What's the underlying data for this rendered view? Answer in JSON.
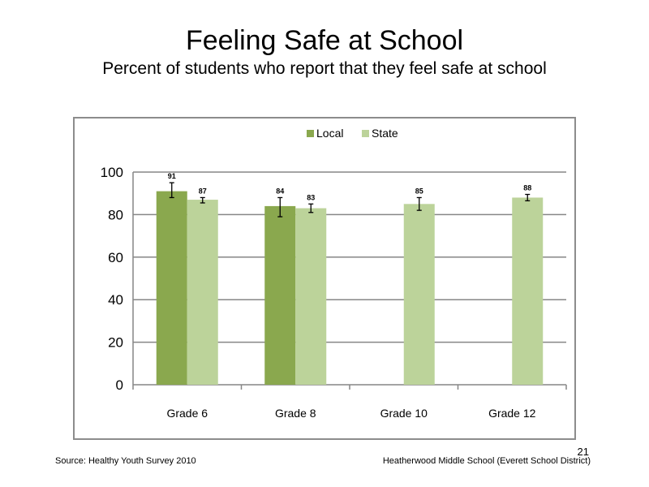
{
  "slide": {
    "title": "Feeling  Safe at School",
    "subtitle": "Percent of students  who report that they feel safe at school",
    "source": "Source: Healthy Youth Survey 2010",
    "school": "Heatherwood Middle  School (Everett School District)",
    "page_number": "21"
  },
  "chart_data": {
    "type": "bar",
    "title": "",
    "xlabel": "",
    "ylabel": "",
    "ylim": [
      0,
      100
    ],
    "yticks": [
      0,
      20,
      40,
      60,
      80,
      100
    ],
    "grid": true,
    "legend_position": "top",
    "categories": [
      "Grade 6",
      "Grade 8",
      "Grade 10",
      "Grade 12"
    ],
    "series": [
      {
        "name": "Local",
        "color": "#8aa84e",
        "values": [
          91,
          84,
          null,
          null
        ],
        "error_low": [
          88,
          79,
          null,
          null
        ],
        "error_high": [
          95,
          88,
          null,
          null
        ]
      },
      {
        "name": "State",
        "color": "#bcd39a",
        "values": [
          87,
          83,
          85,
          88
        ],
        "error_low": [
          85.5,
          81,
          82,
          86.5
        ],
        "error_high": [
          88,
          85,
          88,
          89.5
        ]
      }
    ]
  }
}
